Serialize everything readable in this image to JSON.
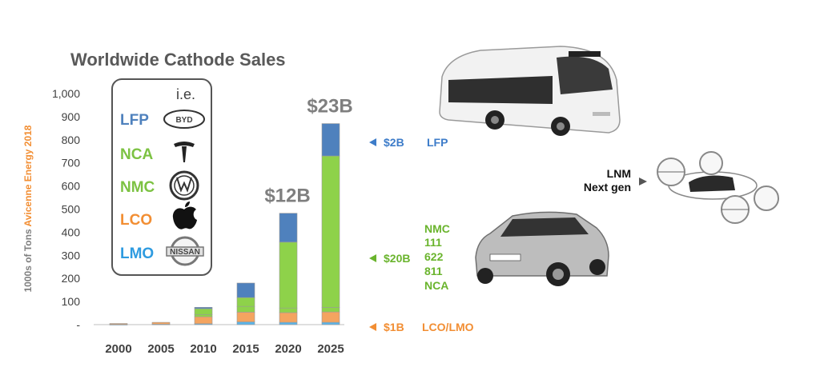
{
  "chart_data": {
    "type": "bar",
    "stacked": true,
    "title": "Worldwide Cathode Sales",
    "ylabel_part1": "1000s of Tons",
    "ylabel_part2": "Avicenne Energy 2018",
    "ylim": [
      0,
      1000
    ],
    "yticks": [
      "-",
      "100",
      "200",
      "300",
      "400",
      "500",
      "600",
      "700",
      "800",
      "900",
      "1,000"
    ],
    "categories": [
      "2000",
      "2005",
      "2010",
      "2015",
      "2020",
      "2025"
    ],
    "series": [
      {
        "name": "LMO",
        "color": "#5bb4e8",
        "values": [
          1,
          2,
          4,
          12,
          10,
          10
        ]
      },
      {
        "name": "LCO",
        "color": "#f4a460",
        "values": [
          4,
          8,
          30,
          42,
          42,
          45
        ]
      },
      {
        "name": "NCA",
        "color": "#8ed24a",
        "values": [
          0,
          0,
          10,
          25,
          20,
          20
        ]
      },
      {
        "name": "NMC",
        "color": "#8ed24a",
        "values": [
          0,
          0,
          25,
          38,
          285,
          655
        ]
      },
      {
        "name": "LFP",
        "color": "#4f81bd",
        "values": [
          0,
          0,
          6,
          63,
          125,
          140
        ]
      }
    ],
    "annotations": [
      {
        "category": "2020",
        "text": "$12B"
      },
      {
        "category": "2025",
        "text": "$23B"
      }
    ],
    "legend_placement": "inset-left",
    "grid": false
  },
  "legend": {
    "header": "i.e.",
    "items": [
      {
        "label": "LFP",
        "color": "#4f81bd",
        "brand_icon": "byd-logo",
        "brand_text": "BYD"
      },
      {
        "label": "NCA",
        "color": "#7cc242",
        "brand_icon": "tesla-logo"
      },
      {
        "label": "NMC",
        "color": "#7cc242",
        "brand_icon": "volkswagen-logo"
      },
      {
        "label": "LCO",
        "color": "#f28e33",
        "brand_icon": "apple-logo"
      },
      {
        "label": "LMO",
        "color": "#2e9be0",
        "brand_icon": "nissan-logo",
        "brand_text": "NISSAN"
      }
    ]
  },
  "callouts": {
    "lfp": {
      "value": "$2B",
      "label": "LFP",
      "color": "#3d7cc9"
    },
    "nmc": {
      "value": "$20B",
      "lines": [
        "NMC",
        "111",
        "622",
        "811",
        "NCA"
      ],
      "color": "#6ab42d"
    },
    "lco": {
      "value": "$1B",
      "label": "LCO/LMO",
      "color": "#f28e33"
    },
    "lnm": {
      "lines": [
        "LNM",
        "Next gen"
      ]
    }
  },
  "images": {
    "bus": "electric-bus-photo",
    "car": "hatchback-car-photo",
    "drone": "air-taxi-drone-photo"
  }
}
